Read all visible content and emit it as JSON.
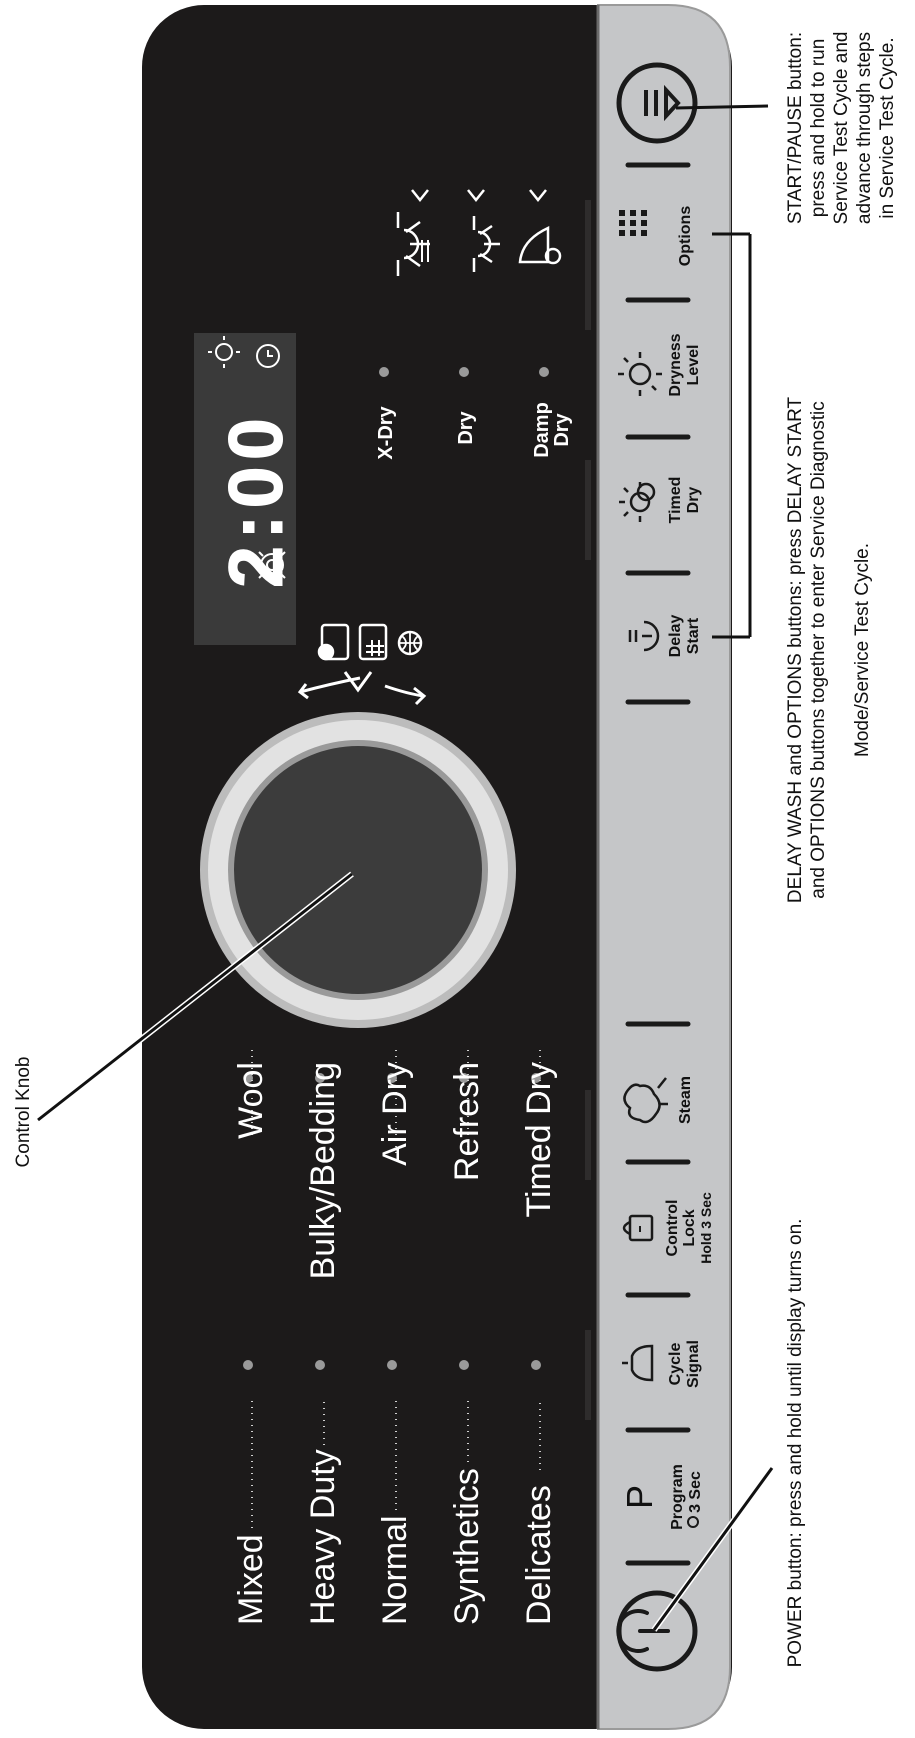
{
  "annotations": {
    "control_knob": "Control Knob",
    "start_pause": [
      "START/PAUSE button:",
      "press and hold to run",
      "Service Test Cycle and",
      "advance through steps",
      "in Service Test Cycle."
    ],
    "delay_options": [
      "DELAY WASH and OPTIONS buttons: press DELAY START",
      "and OPTIONS buttons together to enter Service Diagnostic",
      "Mode/Service Test Cycle."
    ],
    "power": "POWER button: press and hold until display turns on."
  },
  "cycles": {
    "left": [
      "Mixed",
      "Heavy Duty",
      "Normal",
      "Synthetics",
      "Delicates"
    ],
    "right": [
      "Wool",
      "Bulky/Bedding",
      "Air Dry",
      "Refresh",
      "Timed Dry"
    ]
  },
  "display": {
    "time": "2:00"
  },
  "dry_levels": [
    {
      "label": "X-Dry"
    },
    {
      "label": "Dry"
    },
    {
      "label": "Damp Dry",
      "lines": [
        "Damp",
        "Dry"
      ]
    }
  ],
  "buttons": {
    "power": {
      "icon": "power-icon"
    },
    "program": {
      "glyph": "P",
      "lines": [
        "Program",
        "3 Sec"
      ]
    },
    "cycle_signal": {
      "lines": [
        "Cycle",
        "Signal"
      ]
    },
    "control_lock": {
      "lines": [
        "Control",
        "Lock",
        "Hold 3 Sec"
      ]
    },
    "steam": {
      "lines": [
        "Steam"
      ]
    },
    "delay_start": {
      "lines": [
        "Delay",
        "Start"
      ]
    },
    "timed_dry": {
      "lines": [
        "Timed",
        "Dry"
      ]
    },
    "dryness_level": {
      "lines": [
        "Dryness",
        "Level"
      ]
    },
    "options": {
      "lines": [
        "Options"
      ]
    },
    "start_pause": {
      "icon": "start-pause-icon"
    }
  },
  "colors": {
    "panel": "#1c1a1a",
    "strip": "#c5c6c8",
    "knob_ring": "#d6d6d6",
    "display": "#3a3a3a"
  }
}
